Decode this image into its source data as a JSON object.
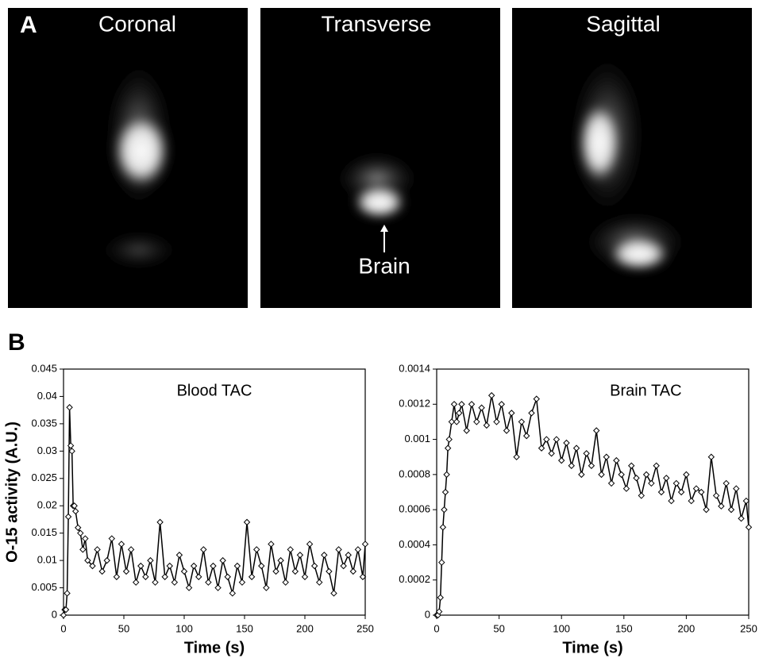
{
  "panel_a": {
    "label": "A",
    "images": [
      {
        "title": "Coronal"
      },
      {
        "title": "Transverse"
      },
      {
        "title": "Sagittal"
      }
    ],
    "annotation": "Brain"
  },
  "panel_b_label": "B",
  "chart_data": [
    {
      "type": "line",
      "title": "Blood TAC",
      "xlabel": "Time (s)",
      "ylabel": "O-15 activity (A.U.)",
      "color": "#000000",
      "x": [
        0,
        1,
        2,
        3,
        4,
        5,
        6,
        7,
        8,
        9,
        10,
        12,
        14,
        16,
        18,
        20,
        24,
        28,
        32,
        36,
        40,
        44,
        48,
        52,
        56,
        60,
        64,
        68,
        72,
        76,
        80,
        84,
        88,
        92,
        96,
        100,
        104,
        108,
        112,
        116,
        120,
        124,
        128,
        132,
        136,
        140,
        144,
        148,
        152,
        156,
        160,
        164,
        168,
        172,
        176,
        180,
        184,
        188,
        192,
        196,
        200,
        204,
        208,
        212,
        216,
        220,
        224,
        228,
        232,
        236,
        240,
        244,
        248,
        250
      ],
      "values": [
        0,
        0.001,
        0.001,
        0.004,
        0.018,
        0.038,
        0.031,
        0.03,
        0.02,
        0.02,
        0.019,
        0.016,
        0.015,
        0.012,
        0.014,
        0.01,
        0.009,
        0.012,
        0.008,
        0.01,
        0.014,
        0.007,
        0.013,
        0.008,
        0.012,
        0.006,
        0.009,
        0.007,
        0.01,
        0.006,
        0.017,
        0.007,
        0.009,
        0.006,
        0.011,
        0.008,
        0.005,
        0.009,
        0.007,
        0.012,
        0.006,
        0.009,
        0.005,
        0.01,
        0.007,
        0.004,
        0.009,
        0.006,
        0.017,
        0.007,
        0.012,
        0.009,
        0.005,
        0.013,
        0.008,
        0.01,
        0.006,
        0.012,
        0.008,
        0.011,
        0.007,
        0.013,
        0.009,
        0.006,
        0.011,
        0.008,
        0.004,
        0.012,
        0.009,
        0.011,
        0.008,
        0.012,
        0.007,
        0.013
      ],
      "xlim": [
        0,
        250
      ],
      "xticks": [
        0,
        50,
        100,
        150,
        200,
        250
      ],
      "ylim": [
        0,
        0.045
      ],
      "yticks": [
        0,
        0.005,
        0.01,
        0.015,
        0.02,
        0.025,
        0.03,
        0.035,
        0.04,
        0.045
      ]
    },
    {
      "type": "line",
      "title": "Brain TAC",
      "xlabel": "Time (s)",
      "color": "#000000",
      "x": [
        0,
        1,
        2,
        3,
        4,
        5,
        6,
        7,
        8,
        9,
        10,
        12,
        14,
        16,
        18,
        20,
        24,
        28,
        32,
        36,
        40,
        44,
        48,
        52,
        56,
        60,
        64,
        68,
        72,
        76,
        80,
        84,
        88,
        92,
        96,
        100,
        104,
        108,
        112,
        116,
        120,
        124,
        128,
        132,
        136,
        140,
        144,
        148,
        152,
        156,
        160,
        164,
        168,
        172,
        176,
        180,
        184,
        188,
        192,
        196,
        200,
        204,
        208,
        212,
        216,
        220,
        224,
        228,
        232,
        236,
        240,
        244,
        248,
        250
      ],
      "values": [
        0,
        0,
        2e-05,
        0.0001,
        0.0003,
        0.0005,
        0.0006,
        0.0007,
        0.0008,
        0.00095,
        0.001,
        0.0011,
        0.0012,
        0.0011,
        0.00115,
        0.0012,
        0.00105,
        0.0012,
        0.0011,
        0.00118,
        0.00108,
        0.00125,
        0.0011,
        0.0012,
        0.00105,
        0.00115,
        0.0009,
        0.0011,
        0.00102,
        0.00115,
        0.00123,
        0.00095,
        0.001,
        0.00092,
        0.001,
        0.00088,
        0.00098,
        0.00085,
        0.00095,
        0.0008,
        0.00092,
        0.00085,
        0.00105,
        0.0008,
        0.0009,
        0.00075,
        0.00088,
        0.0008,
        0.00072,
        0.00085,
        0.00078,
        0.00068,
        0.0008,
        0.00075,
        0.00085,
        0.0007,
        0.00078,
        0.00065,
        0.00075,
        0.0007,
        0.0008,
        0.00065,
        0.00072,
        0.0007,
        0.0006,
        0.0009,
        0.00068,
        0.00062,
        0.00075,
        0.0006,
        0.00072,
        0.00055,
        0.00065,
        0.0005
      ],
      "xlim": [
        0,
        250
      ],
      "xticks": [
        0,
        50,
        100,
        150,
        200,
        250
      ],
      "ylim": [
        0,
        0.0014
      ],
      "yticks": [
        0,
        0.0002,
        0.0004,
        0.0006,
        0.0008,
        0.001,
        0.0012,
        0.0014
      ]
    }
  ]
}
